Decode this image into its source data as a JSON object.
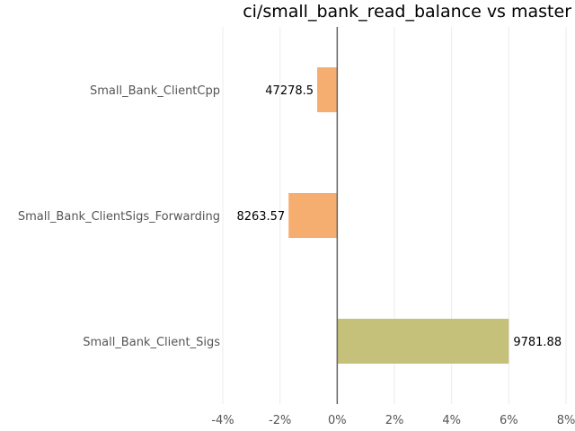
{
  "chart_data": {
    "type": "bar",
    "orientation": "horizontal",
    "title": "ci/small_bank_read_balance vs master",
    "xlabel": "",
    "ylabel": "",
    "xlim": [
      -4.0,
      8.0
    ],
    "x_ticks": [
      -4,
      -2,
      0,
      2,
      4,
      6,
      8
    ],
    "x_tick_labels": [
      "-4%",
      "-2%",
      "0%",
      "2%",
      "4%",
      "6%",
      "8%"
    ],
    "categories": [
      "Small_Bank_ClientCpp",
      "Small_Bank_ClientSigs_Forwarding",
      "Small_Bank_Client_Sigs"
    ],
    "values": [
      -0.7,
      -1.7,
      6.0
    ],
    "data_labels": [
      "47278.5",
      "8263.57",
      "9781.88"
    ],
    "colors": [
      "#f5ad70",
      "#f5ad70",
      "#c5c07a"
    ],
    "grid": true,
    "legend": "none"
  }
}
